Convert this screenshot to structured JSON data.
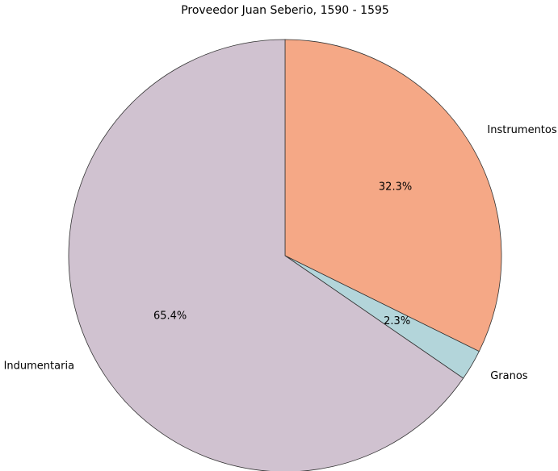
{
  "chart_data": {
    "type": "pie",
    "title": "Proveedor Juan Seberio, 1590 - 1595",
    "categories": [
      "Instrumentos",
      "Granos",
      "Indumentaria"
    ],
    "values": [
      32.3,
      2.3,
      65.4
    ],
    "value_labels": [
      "32.3%",
      "2.3%",
      "65.4%"
    ],
    "colors": [
      "#f5a886",
      "#b3d5da",
      "#d0c2d0"
    ]
  }
}
